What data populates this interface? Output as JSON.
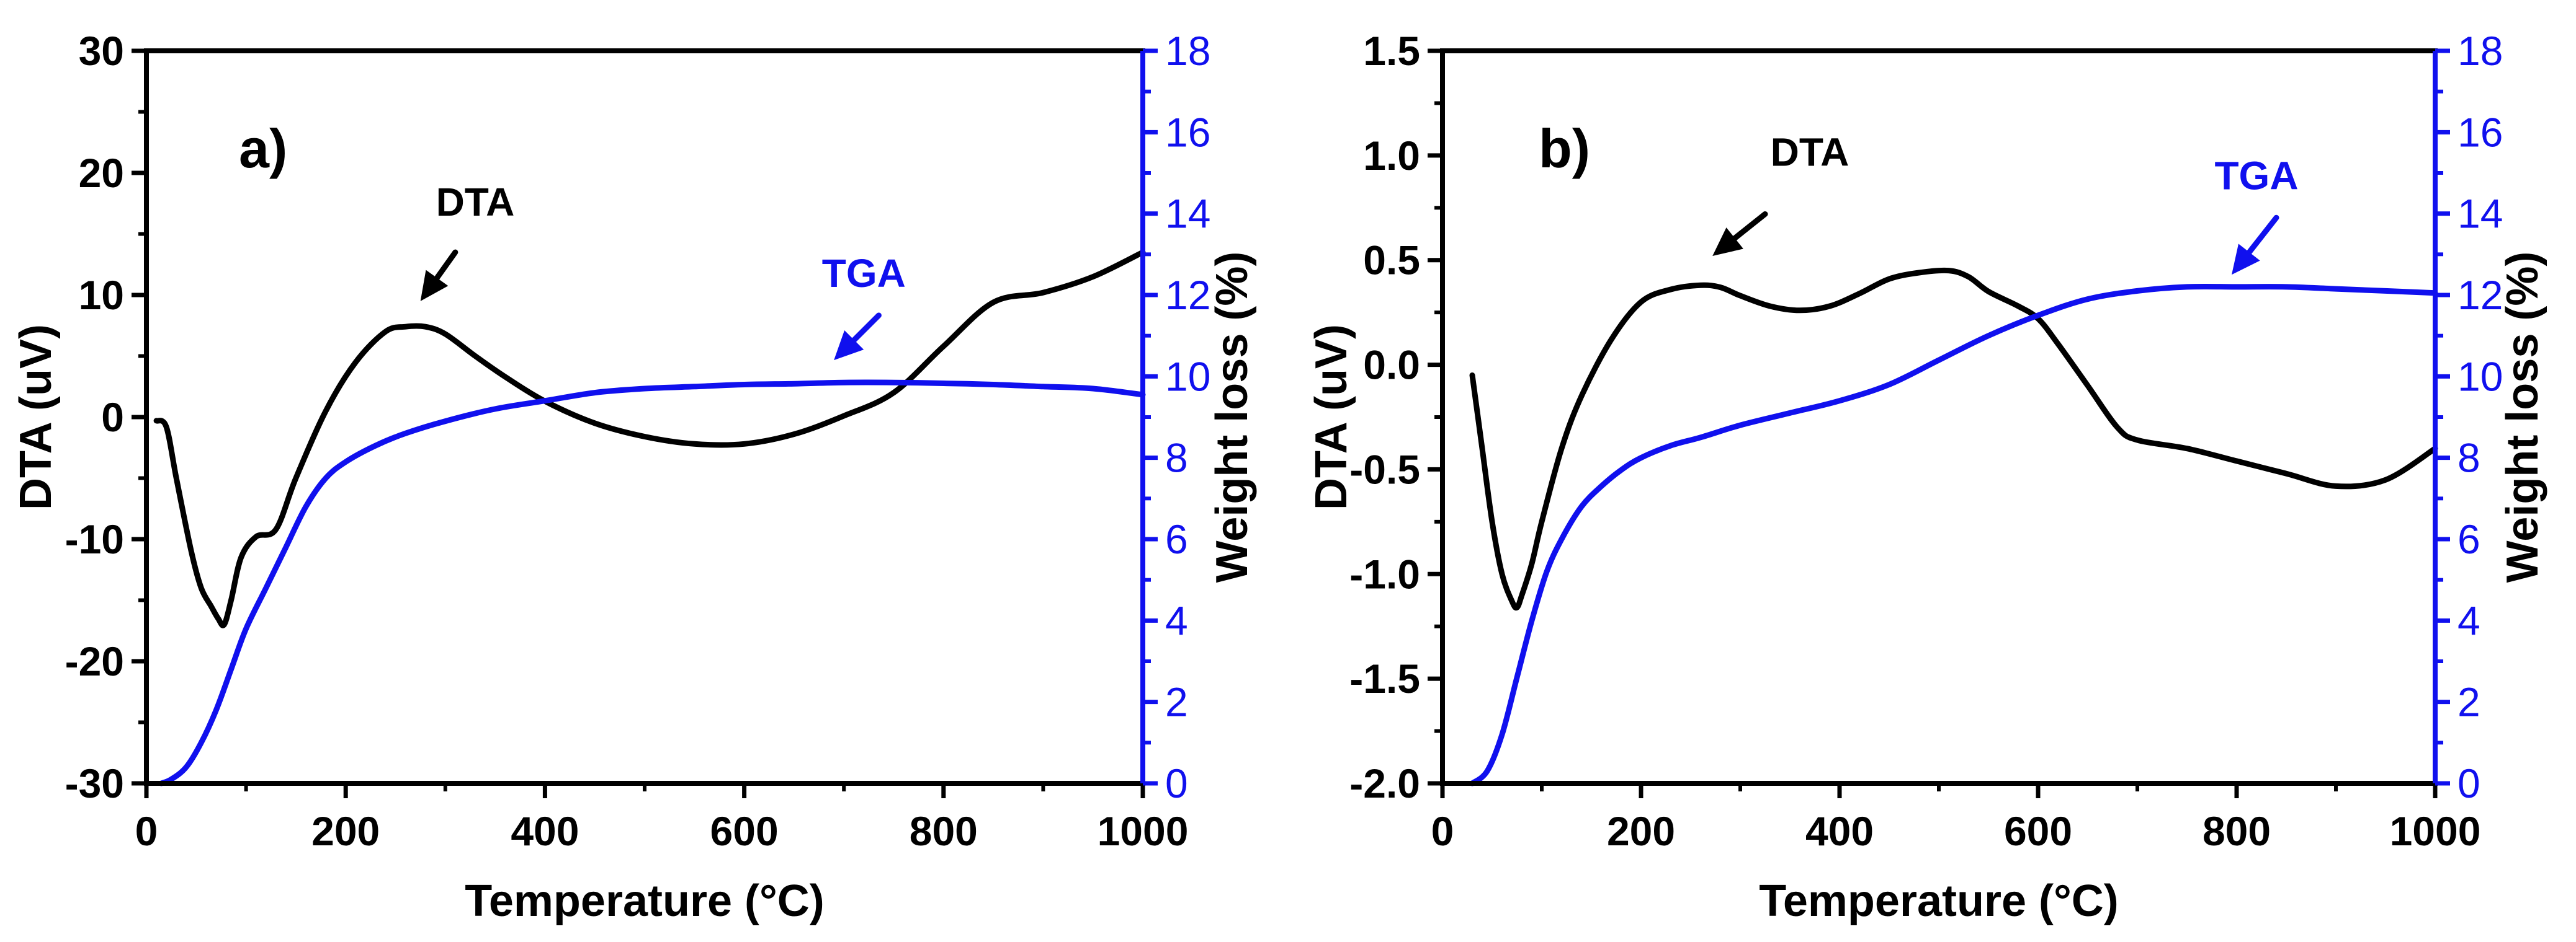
{
  "chart_data": [
    {
      "type": "line",
      "panel_label": "a)",
      "xlabel": "Temperature (°C)",
      "ylabel_left": "DTA (uV)",
      "ylabel_right": "Weight loss (%)",
      "xlim": [
        0,
        1000
      ],
      "ylim_left": [
        -30,
        30
      ],
      "ylim_right": [
        0,
        18
      ],
      "x_ticks": [
        "0",
        "200",
        "400",
        "600",
        "800",
        "1000"
      ],
      "y_left_ticks": [
        "-30",
        "-20",
        "-10",
        "0",
        "10",
        "20",
        "30"
      ],
      "y_right_ticks": [
        "0",
        "2",
        "4",
        "6",
        "8",
        "10",
        "12",
        "14",
        "16",
        "18"
      ],
      "colors": {
        "dta": "#000000",
        "tga": "#1010ee",
        "right_axis": "#1010ee"
      },
      "annotations": [
        {
          "text": "DTA",
          "color": "#000000",
          "text_x": 330,
          "text_y": 16.5,
          "arrow_from": [
            310,
            13.5
          ],
          "arrow_to": [
            275,
            9.5
          ]
        },
        {
          "text": "TGA",
          "color": "#1010ee",
          "text_x": 720,
          "text_y": 12.2,
          "arrow_from": [
            735,
            11.5
          ],
          "arrow_to": [
            690,
            10.4
          ],
          "axis": "right"
        }
      ],
      "series": [
        {
          "name": "DTA",
          "axis": "left",
          "x": [
            10,
            20,
            30,
            45,
            55,
            65,
            72,
            78,
            85,
            95,
            110,
            130,
            150,
            180,
            210,
            240,
            260,
            280,
            300,
            330,
            360,
            400,
            450,
            500,
            550,
            600,
            650,
            700,
            750,
            800,
            850,
            900,
            950,
            1000
          ],
          "y": [
            -0.3,
            -0.8,
            -5,
            -11,
            -14,
            -15.5,
            -16.5,
            -17,
            -15,
            -11.5,
            -9.8,
            -9.2,
            -5,
            0.5,
            4.5,
            7,
            7.4,
            7.4,
            6.8,
            5,
            3.3,
            1.3,
            -0.5,
            -1.6,
            -2.2,
            -2.2,
            -1.4,
            0.1,
            2,
            5.8,
            9.4,
            10.2,
            11.5,
            13.5
          ]
        },
        {
          "name": "TGA",
          "axis": "right",
          "x": [
            15,
            25,
            40,
            55,
            70,
            85,
            100,
            120,
            140,
            160,
            180,
            200,
            230,
            260,
            300,
            350,
            400,
            450,
            500,
            550,
            600,
            650,
            700,
            750,
            800,
            850,
            900,
            950,
            1000
          ],
          "y": [
            0,
            0.1,
            0.4,
            1.0,
            1.8,
            2.8,
            3.8,
            4.8,
            5.8,
            6.8,
            7.5,
            7.9,
            8.3,
            8.6,
            8.9,
            9.2,
            9.4,
            9.6,
            9.7,
            9.75,
            9.8,
            9.82,
            9.85,
            9.85,
            9.83,
            9.8,
            9.75,
            9.7,
            9.55
          ]
        }
      ]
    },
    {
      "type": "line",
      "panel_label": "b)",
      "xlabel": "Temperature (°C)",
      "ylabel_left": "DTA (uV)",
      "ylabel_right": "Weight loss (%)",
      "xlim": [
        0,
        1000
      ],
      "ylim_left": [
        -2.0,
        1.5
      ],
      "ylim_right": [
        0,
        18
      ],
      "x_ticks": [
        "0",
        "200",
        "400",
        "600",
        "800",
        "1000"
      ],
      "y_left_ticks": [
        "-2.0",
        "-1.5",
        "-1.0",
        "-0.5",
        "0.0",
        "0.5",
        "1.0",
        "1.5"
      ],
      "y_right_ticks": [
        "0",
        "2",
        "4",
        "6",
        "8",
        "10",
        "12",
        "14",
        "16",
        "18"
      ],
      "colors": {
        "dta": "#000000",
        "tga": "#1010ee",
        "right_axis": "#1010ee"
      },
      "annotations": [
        {
          "text": "DTA",
          "color": "#000000",
          "text_x": 370,
          "text_y": 0.95,
          "arrow_from": [
            325,
            0.72
          ],
          "arrow_to": [
            272,
            0.52
          ]
        },
        {
          "text": "TGA",
          "color": "#1010ee",
          "text_x": 820,
          "text_y": 14.6,
          "arrow_from": [
            840,
            13.9
          ],
          "arrow_to": [
            795,
            12.5
          ],
          "axis": "right"
        }
      ],
      "series": [
        {
          "name": "DTA",
          "axis": "left",
          "x": [
            30,
            40,
            50,
            60,
            70,
            75,
            80,
            90,
            100,
            120,
            140,
            170,
            200,
            230,
            260,
            280,
            300,
            330,
            360,
            390,
            420,
            450,
            480,
            510,
            530,
            550,
            580,
            600,
            620,
            650,
            680,
            700,
            750,
            800,
            850,
            900,
            950,
            1000
          ],
          "y": [
            -0.05,
            -0.4,
            -0.75,
            -1.0,
            -1.13,
            -1.16,
            -1.1,
            -0.95,
            -0.75,
            -0.4,
            -0.15,
            0.12,
            0.3,
            0.36,
            0.38,
            0.37,
            0.33,
            0.28,
            0.26,
            0.28,
            0.34,
            0.41,
            0.44,
            0.45,
            0.42,
            0.35,
            0.28,
            0.22,
            0.1,
            -0.1,
            -0.3,
            -0.36,
            -0.4,
            -0.46,
            -0.52,
            -0.58,
            -0.55,
            -0.4
          ]
        },
        {
          "name": "TGA",
          "axis": "right",
          "x": [
            30,
            45,
            60,
            75,
            90,
            105,
            120,
            140,
            160,
            180,
            200,
            230,
            260,
            300,
            350,
            400,
            450,
            500,
            550,
            600,
            650,
            700,
            750,
            800,
            850,
            900,
            950,
            1000
          ],
          "y": [
            0,
            0.3,
            1.2,
            2.6,
            4.0,
            5.2,
            6.0,
            6.8,
            7.3,
            7.7,
            8.0,
            8.3,
            8.5,
            8.8,
            9.1,
            9.4,
            9.8,
            10.4,
            11.0,
            11.5,
            11.9,
            12.1,
            12.2,
            12.2,
            12.2,
            12.15,
            12.1,
            12.05
          ]
        }
      ]
    }
  ]
}
